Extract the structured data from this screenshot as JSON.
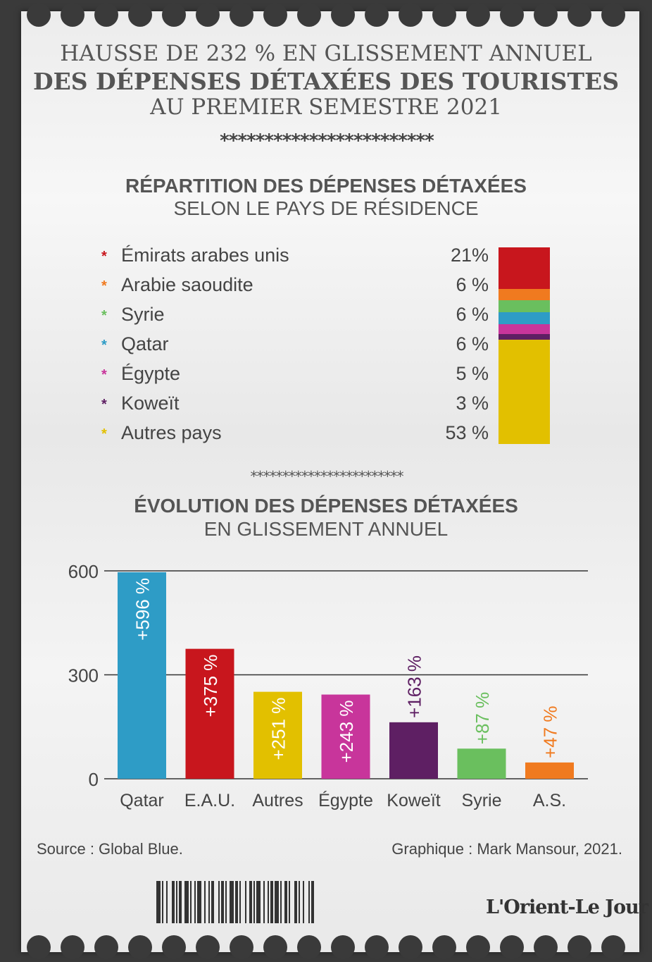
{
  "title": {
    "line1": "HAUSSE DE 232 % EN GLISSEMENT ANNUEL",
    "line2": "DES DÉPENSES DÉTAXÉES DES TOURISTES",
    "line3": "AU PREMIER SEMESTRE 2021"
  },
  "separator_top": "************************",
  "separator_mid": "************************",
  "section1": {
    "title": "RÉPARTITION DES DÉPENSES DÉTAXÉES",
    "subtitle": "SELON LE PAYS DE RÉSIDENCE"
  },
  "section2": {
    "title": "ÉVOLUTION DES DÉPENSES DÉTAXÉES",
    "subtitle": "EN GLISSEMENT ANNUEL"
  },
  "chart_data": [
    {
      "type": "bar",
      "title": "RÉPARTITION DES DÉPENSES DÉTAXÉES SELON LE PAYS DE RÉSIDENCE",
      "stacked": true,
      "legend_marker": "*",
      "categories": [
        "Émirats arabes unis",
        "Arabie saoudite",
        "Syrie",
        "Qatar",
        "Égypte",
        "Koweït",
        "Autres pays"
      ],
      "values": [
        21,
        6,
        6,
        6,
        5,
        3,
        53
      ],
      "labels": [
        "21%",
        "6 %",
        "6 %",
        "6 %",
        "5 %",
        "3 %",
        "53 %"
      ],
      "colors": [
        "#c8161d",
        "#f07a1f",
        "#6abf5e",
        "#2e9cc6",
        "#c8359b",
        "#5e1f63",
        "#e2c000"
      ],
      "unit": "%"
    },
    {
      "type": "bar",
      "title": "ÉVOLUTION DES DÉPENSES DÉTAXÉES EN GLISSEMENT ANNUEL",
      "categories": [
        "Qatar",
        "E.A.U.",
        "Autres",
        "Égypte",
        "Koweït",
        "Syrie",
        "A.S."
      ],
      "values": [
        596,
        375,
        251,
        243,
        163,
        87,
        47
      ],
      "labels": [
        "+596 %",
        "+375 %",
        "+251 %",
        "+243 %",
        "+163 %",
        "+87 %",
        "+47 %"
      ],
      "colors": [
        "#2e9cc6",
        "#c8161d",
        "#e2c000",
        "#c8359b",
        "#5e1f63",
        "#6abf5e",
        "#f07a1f"
      ],
      "yticks": [
        0,
        300,
        600
      ],
      "ylim": [
        0,
        600
      ],
      "grid": true
    }
  ],
  "footer": {
    "source": "Source : Global Blue.",
    "credit": "Graphique : Mark Mansour, 2021.",
    "logo": "L'Orient-Le Jour"
  }
}
